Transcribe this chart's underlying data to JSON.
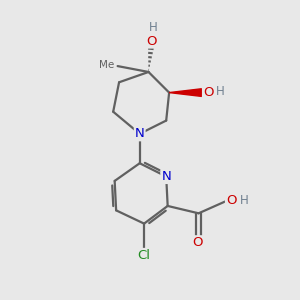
{
  "background_color": "#e8e8e8",
  "atom_colors": {
    "C": "#606060",
    "N": "#0000cd",
    "O": "#cc0000",
    "Cl": "#228b22",
    "H": "#708090"
  },
  "bond_color": "#606060",
  "bond_width": 1.6,
  "figsize": [
    3.0,
    3.0
  ],
  "dpi": 100
}
